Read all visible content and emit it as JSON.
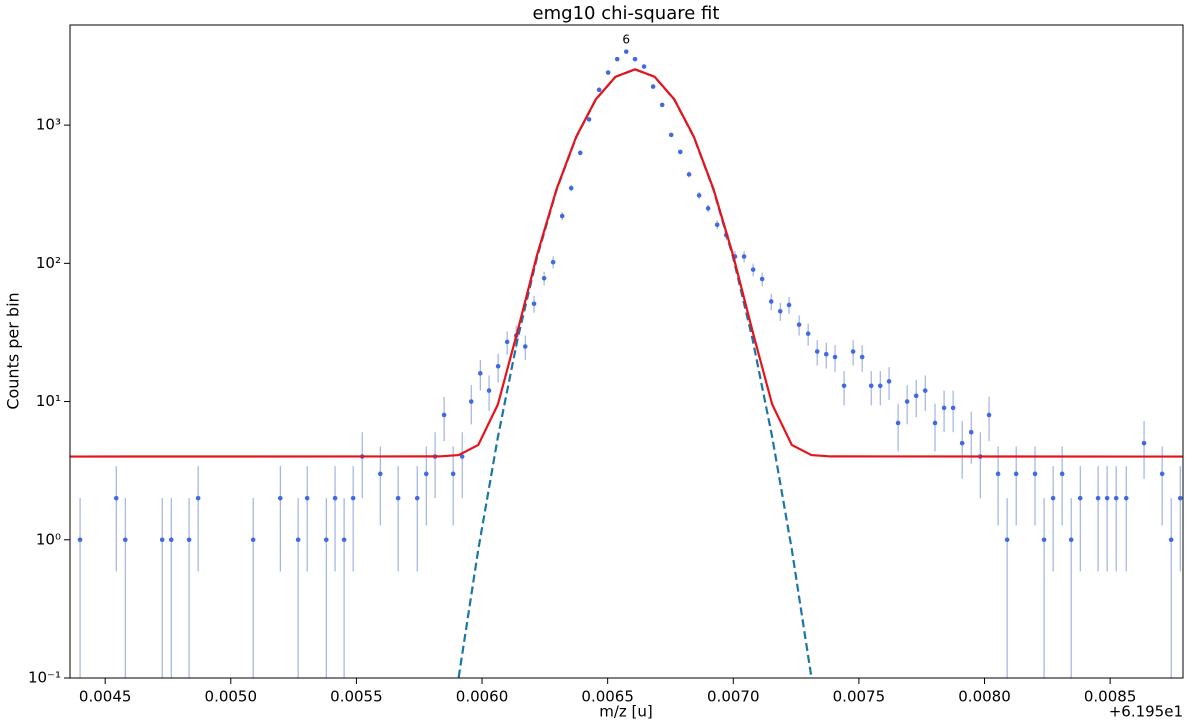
{
  "chart_data": {
    "type": "scatter",
    "title": "emg10 chi-square fit",
    "xlabel": "m/z [u]",
    "ylabel": "Counts per bin",
    "x_offset_text": "+6.195e1",
    "log_y": true,
    "xlim": [
      0.00436,
      0.00879
    ],
    "ylim": [
      0.1,
      5300
    ],
    "xticks": [
      0.0045,
      {
        "value": 0.005,
        "label": "0.0050"
      },
      0.0055,
      {
        "value": 0.006,
        "label": "0.0060"
      },
      0.0065,
      {
        "value": 0.007,
        "label": "0.0070"
      },
      0.0075,
      {
        "value": 0.008,
        "label": "0.0080"
      },
      0.0085
    ],
    "yticks": [
      {
        "value": 0.1,
        "label": "10⁻¹"
      },
      {
        "value": 1,
        "label": "10⁰"
      },
      {
        "value": 10,
        "label": "10¹"
      },
      {
        "value": 100,
        "label": "10²"
      },
      {
        "value": 1000,
        "label": "10³"
      }
    ],
    "annotations": [
      {
        "text": "6",
        "x": 0.006574,
        "y": 4130
      }
    ],
    "series": [
      {
        "type": "errorbar",
        "color": "#4169e1",
        "error_color": "#8ea3de",
        "x": [
          0.0044,
          0.004544,
          0.00458,
          0.004727,
          0.004763,
          0.004834,
          0.00487,
          0.005089,
          0.005197,
          0.005268,
          0.005304,
          0.00538,
          0.005415,
          0.005451,
          0.005487,
          0.005523,
          0.005595,
          0.005666,
          0.005742,
          0.005778,
          0.005813,
          0.005849,
          0.005885,
          0.005921,
          0.005957,
          0.005993,
          0.006028,
          0.006064,
          0.0061,
          0.006136,
          0.006172,
          0.006207,
          0.006247,
          0.006283,
          0.006319,
          0.006355,
          0.006391,
          0.006426,
          0.006466,
          0.006502,
          0.006538,
          0.006574,
          0.006609,
          0.006645,
          0.006681,
          0.006717,
          0.006753,
          0.006789,
          0.006824,
          0.006864,
          0.0069,
          0.006936,
          0.006972,
          0.007007,
          0.007043,
          0.007079,
          0.007115,
          0.007151,
          0.007187,
          0.007222,
          0.007262,
          0.007298,
          0.007334,
          0.00737,
          0.007405,
          0.007441,
          0.007477,
          0.007513,
          0.007549,
          0.007585,
          0.00762,
          0.007656,
          0.007692,
          0.007728,
          0.007764,
          0.007803,
          0.007839,
          0.007875,
          0.007911,
          0.007947,
          0.007983,
          0.008018,
          0.008054,
          0.00809,
          0.008126,
          0.008201,
          0.008237,
          0.008273,
          0.008309,
          0.008345,
          0.008381,
          0.008452,
          0.008488,
          0.008524,
          0.008564,
          0.008635,
          0.008707,
          0.008743,
          0.008779
        ],
        "values": [
          1,
          2,
          1,
          1,
          1,
          1,
          2,
          1,
          2,
          1,
          2,
          1,
          2,
          1,
          2,
          4,
          3,
          2,
          2,
          3,
          4,
          8,
          3,
          4,
          10,
          16,
          12,
          18,
          27,
          30,
          25,
          51,
          78,
          102,
          220,
          350,
          630,
          1100,
          1800,
          2400,
          3000,
          3400,
          3000,
          2650,
          1900,
          1400,
          850,
          640,
          440,
          310,
          250,
          190,
          160,
          112,
          112,
          90,
          77,
          53,
          45,
          50,
          36,
          31,
          23,
          22,
          21,
          13,
          23,
          21,
          13,
          13,
          14,
          7,
          10,
          11,
          12,
          7,
          9,
          9,
          5,
          6,
          4,
          8,
          3,
          1,
          3,
          3,
          1,
          2,
          3,
          1,
          2,
          2,
          2,
          2,
          2,
          5,
          3,
          1,
          2
        ],
        "errors": [
          1,
          1.41,
          1,
          1,
          1,
          1,
          1.41,
          1,
          1.41,
          1,
          1.41,
          1,
          1.41,
          1,
          1.41,
          2,
          1.73,
          1.41,
          1.41,
          1.73,
          2,
          2.83,
          1.73,
          2,
          3.16,
          4,
          3.46,
          4.24,
          5.2,
          5.48,
          5,
          7.14,
          8.83,
          10.1,
          14.83,
          18.71,
          25.1,
          33.17,
          42.43,
          48.99,
          54.77,
          58.31,
          54.77,
          51.48,
          43.59,
          37.42,
          29.15,
          25.3,
          20.98,
          17.61,
          15.81,
          13.78,
          12.65,
          10.58,
          10.58,
          9.49,
          8.77,
          7.28,
          6.71,
          7.07,
          6,
          5.57,
          4.8,
          4.69,
          4.58,
          3.61,
          4.8,
          4.58,
          3.61,
          3.61,
          3.74,
          2.65,
          3.16,
          3.32,
          3.46,
          2.65,
          3,
          3,
          2.24,
          2.45,
          2,
          2.83,
          1.73,
          1,
          1.73,
          1.73,
          1,
          1.41,
          1.73,
          1,
          1.41,
          1.41,
          1.41,
          1.41,
          1.41,
          2.24,
          1.73,
          1,
          1.41
        ]
      },
      {
        "type": "line",
        "color": "#e8121b",
        "dashed": false,
        "x": [
          0.00436,
          0.005829,
          0.005907,
          0.005985,
          0.006063,
          0.006141,
          0.006219,
          0.006297,
          0.006375,
          0.006453,
          0.006531,
          0.006609,
          0.006687,
          0.006765,
          0.006843,
          0.006921,
          0.006999,
          0.007077,
          0.007155,
          0.007233,
          0.007311,
          0.007389,
          0.00879
        ],
        "values": [
          4,
          4.01,
          4.1,
          4.85,
          9.52,
          32.1,
          115,
          346,
          825,
          1538,
          2237,
          2534,
          2237,
          1538,
          825,
          346,
          115,
          32.1,
          9.52,
          4.85,
          4.1,
          4.01,
          4
        ]
      },
      {
        "type": "line",
        "color": "#1b76a8",
        "dashed": true,
        "x": [
          0.005907,
          0.005985,
          0.006063,
          0.006141,
          0.006219,
          0.006297,
          0.006375,
          0.006453,
          0.006531,
          0.006609,
          0.006687,
          0.006765,
          0.006843,
          0.006921,
          0.006999,
          0.007077,
          0.007155,
          0.007233,
          0.007311
        ],
        "values": [
          0.101,
          0.849,
          5.52,
          28.1,
          111,
          342,
          821,
          1534,
          2233,
          2530,
          2233,
          1534,
          821,
          342,
          111,
          28.1,
          5.52,
          0.849,
          0.101
        ]
      }
    ]
  }
}
